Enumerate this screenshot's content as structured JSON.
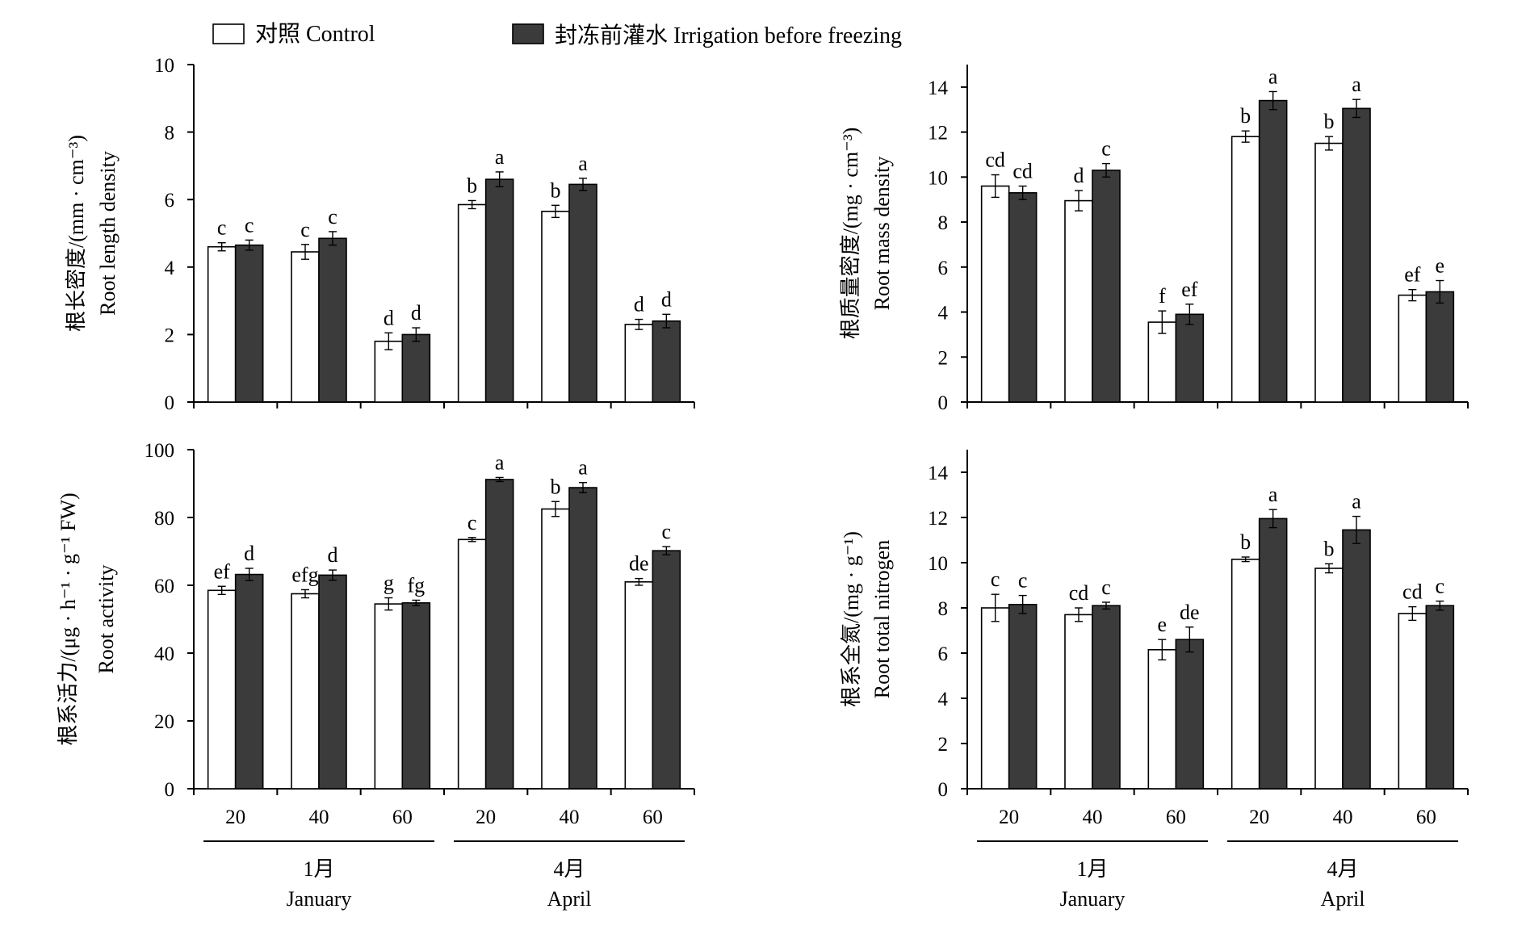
{
  "legend": {
    "control": "对照 Control",
    "irrigation": "封冻前灌水 Irrigation before freezing"
  },
  "colors": {
    "control": "#ffffff",
    "irrigation": "#3b3b3b",
    "axis": "#000000"
  },
  "chart_data": [
    {
      "type": "bar",
      "ylabel_cn": "根长密度/(mm · cm⁻³)",
      "ylabel_en": "Root length density",
      "ylim": [
        0,
        10
      ],
      "yticks": [
        0,
        2,
        4,
        6,
        8,
        10
      ],
      "categories": [
        "20",
        "40",
        "60",
        "20",
        "40",
        "60"
      ],
      "groups": [
        {
          "cn": "1月",
          "en": "January"
        },
        {
          "cn": "4月",
          "en": "April"
        }
      ],
      "series": [
        {
          "name": "对照 Control",
          "values": [
            4.6,
            4.45,
            1.8,
            5.85,
            5.65,
            2.3
          ],
          "errors": [
            0.12,
            0.22,
            0.25,
            0.12,
            0.18,
            0.15
          ],
          "labels": [
            "c",
            "c",
            "d",
            "b",
            "b",
            "d"
          ]
        },
        {
          "name": "封冻前灌水 Irrigation before freezing",
          "values": [
            4.65,
            4.85,
            2.0,
            6.6,
            6.45,
            2.4
          ],
          "errors": [
            0.15,
            0.2,
            0.2,
            0.22,
            0.18,
            0.2
          ],
          "labels": [
            "c",
            "c",
            "d",
            "a",
            "a",
            "d"
          ]
        }
      ]
    },
    {
      "type": "bar",
      "ylabel_cn": "根质量密度/(mg · cm⁻³)",
      "ylabel_en": "Root mass density",
      "ylim": [
        0,
        15
      ],
      "yticks": [
        0,
        2,
        4,
        6,
        8,
        10,
        12,
        14
      ],
      "categories": [
        "20",
        "40",
        "60",
        "20",
        "40",
        "60"
      ],
      "groups": [
        {
          "cn": "1月",
          "en": "January"
        },
        {
          "cn": "4月",
          "en": "April"
        }
      ],
      "series": [
        {
          "name": "对照 Control",
          "values": [
            9.6,
            8.95,
            3.55,
            11.8,
            11.5,
            4.75
          ],
          "errors": [
            0.5,
            0.45,
            0.5,
            0.25,
            0.3,
            0.25
          ],
          "labels": [
            "cd",
            "d",
            "f",
            "b",
            "b",
            "ef"
          ]
        },
        {
          "name": "封冻前灌水 Irrigation before freezing",
          "values": [
            9.3,
            10.3,
            3.9,
            13.4,
            13.05,
            4.9
          ],
          "errors": [
            0.3,
            0.3,
            0.45,
            0.4,
            0.4,
            0.5
          ],
          "labels": [
            "cd",
            "c",
            "ef",
            "a",
            "a",
            "e"
          ]
        }
      ]
    },
    {
      "type": "bar",
      "ylabel_cn": "根系活力/(μg · h⁻¹ · g⁻¹ FW)",
      "ylabel_en": "Root activity",
      "ylim": [
        0,
        100
      ],
      "yticks": [
        0,
        20,
        40,
        60,
        80,
        100
      ],
      "categories": [
        "20",
        "40",
        "60",
        "20",
        "40",
        "60"
      ],
      "groups": [
        {
          "cn": "1月",
          "en": "January"
        },
        {
          "cn": "4月",
          "en": "April"
        }
      ],
      "series": [
        {
          "name": "对照 Control",
          "values": [
            58.5,
            57.5,
            54.5,
            73.5,
            82.5,
            61
          ],
          "errors": [
            1.2,
            1.2,
            1.8,
            0.6,
            2.2,
            1.0
          ],
          "labels": [
            "ef",
            "efg",
            "g",
            "c",
            "b",
            "de"
          ]
        },
        {
          "name": "封冻前灌水 Irrigation before freezing",
          "values": [
            63.2,
            63.0,
            54.8,
            91.2,
            88.8,
            70.2
          ],
          "errors": [
            1.8,
            1.5,
            0.8,
            0.6,
            1.5,
            1.2
          ],
          "labels": [
            "d",
            "d",
            "fg",
            "a",
            "a",
            "c"
          ]
        }
      ]
    },
    {
      "type": "bar",
      "ylabel_cn": "根系全氮/(mg · g⁻¹)",
      "ylabel_en": "Root total nitrogen",
      "ylim": [
        0,
        15
      ],
      "yticks": [
        0,
        2,
        4,
        6,
        8,
        10,
        12,
        14
      ],
      "categories": [
        "20",
        "40",
        "60",
        "20",
        "40",
        "60"
      ],
      "groups": [
        {
          "cn": "1月",
          "en": "January"
        },
        {
          "cn": "4月",
          "en": "April"
        }
      ],
      "series": [
        {
          "name": "对照 Control",
          "values": [
            8.0,
            7.7,
            6.15,
            10.15,
            9.75,
            7.75
          ],
          "errors": [
            0.6,
            0.3,
            0.45,
            0.1,
            0.2,
            0.3
          ],
          "labels": [
            "c",
            "cd",
            "e",
            "b",
            "b",
            "cd"
          ]
        },
        {
          "name": "封冻前灌水 Irrigation before freezing",
          "values": [
            8.15,
            8.1,
            6.6,
            11.95,
            11.45,
            8.1
          ],
          "errors": [
            0.4,
            0.15,
            0.55,
            0.4,
            0.6,
            0.2
          ],
          "labels": [
            "c",
            "c",
            "de",
            "a",
            "a",
            "c"
          ]
        }
      ]
    }
  ]
}
